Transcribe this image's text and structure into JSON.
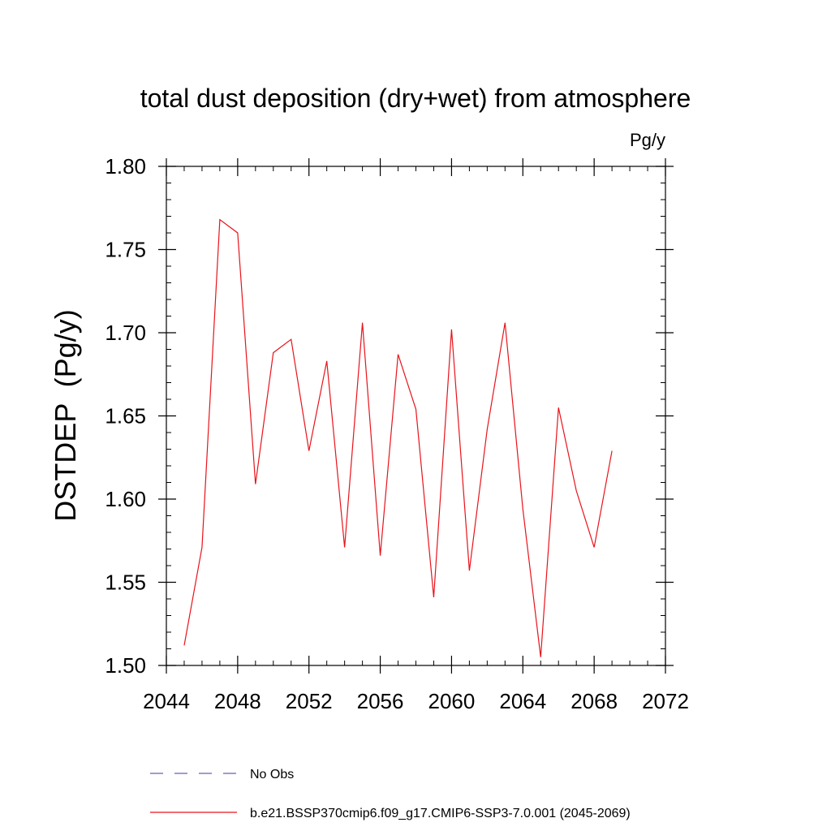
{
  "chart_data": {
    "type": "line",
    "title": "total dust deposition (dry+wet) from atmosphere",
    "units_label": "Pg/y",
    "ylabel": "DSTDEP  (Pg/y)",
    "xlabel": "",
    "xlim": [
      2044,
      2072
    ],
    "ylim": [
      1.5,
      1.8
    ],
    "xticks": [
      2044,
      2048,
      2052,
      2056,
      2060,
      2064,
      2068,
      2072
    ],
    "xtick_labels": [
      "2044",
      "2048",
      "2052",
      "2056",
      "2060",
      "2064",
      "2068",
      "2072"
    ],
    "yticks": [
      1.5,
      1.55,
      1.6,
      1.65,
      1.7,
      1.75,
      1.8
    ],
    "ytick_labels": [
      "1.50",
      "1.55",
      "1.60",
      "1.65",
      "1.70",
      "1.75",
      "1.80"
    ],
    "x_minor_step": 1,
    "y_minor_step": 0.01,
    "grid": false,
    "legend_position": "bottom",
    "series": [
      {
        "name": "No Obs",
        "color": "#6b5fb0",
        "dashed": true,
        "x": [],
        "values": []
      },
      {
        "name": "b.e21.BSSP370cmip6.f09_g17.CMIP6-SSP3-7.0.001 (2045-2069)",
        "color": "#e8131a",
        "dashed": false,
        "x": [
          2045,
          2046,
          2047,
          2048,
          2049,
          2050,
          2051,
          2052,
          2053,
          2054,
          2055,
          2056,
          2057,
          2058,
          2059,
          2060,
          2061,
          2062,
          2063,
          2064,
          2065,
          2066,
          2067,
          2068,
          2069
        ],
        "values": [
          1.512,
          1.571,
          1.768,
          1.76,
          1.609,
          1.688,
          1.696,
          1.629,
          1.683,
          1.571,
          1.706,
          1.566,
          1.687,
          1.654,
          1.541,
          1.702,
          1.557,
          1.642,
          1.706,
          1.594,
          1.505,
          1.655,
          1.605,
          1.571,
          1.629
        ]
      }
    ]
  }
}
